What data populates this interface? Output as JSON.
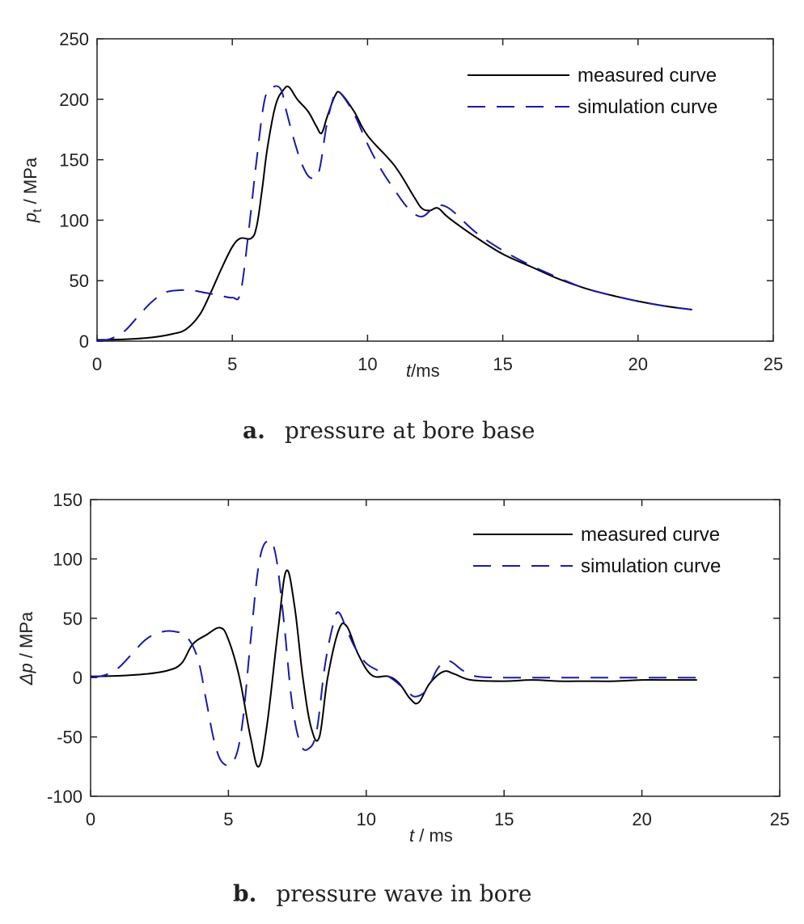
{
  "chart_data": [
    {
      "type": "line",
      "caption_letter": "a.",
      "caption_text": "pressure at bore base",
      "xlabel_var": "t",
      "xlabel_unit": "/ms",
      "ylabel_var": "p",
      "ylabel_sub": "t",
      "ylabel_unit": " / MPa",
      "xlim": [
        0,
        25
      ],
      "ylim": [
        0,
        250
      ],
      "xticks": [
        "0",
        "5",
        "10",
        "15",
        "20",
        "25"
      ],
      "yticks": [
        "0",
        "50",
        "100",
        "150",
        "200",
        "250"
      ],
      "legend_position": "top-right",
      "grid": false,
      "series": [
        {
          "name": "measured curve",
          "color": "#000000",
          "style": "solid",
          "points": [
            [
              0,
              1
            ],
            [
              1,
              1.5
            ],
            [
              2,
              3
            ],
            [
              2.8,
              6
            ],
            [
              3.3,
              10
            ],
            [
              3.8,
              22
            ],
            [
              4.2,
              40
            ],
            [
              4.6,
              60
            ],
            [
              5,
              78
            ],
            [
              5.3,
              85
            ],
            [
              5.7,
              85
            ],
            [
              5.9,
              95
            ],
            [
              6.1,
              125
            ],
            [
              6.3,
              160
            ],
            [
              6.6,
              195
            ],
            [
              6.9,
              208
            ],
            [
              7.1,
              210
            ],
            [
              7.4,
              200
            ],
            [
              7.8,
              190
            ],
            [
              8.1,
              178
            ],
            [
              8.3,
              172
            ],
            [
              8.5,
              185
            ],
            [
              8.8,
              203
            ],
            [
              9.0,
              205
            ],
            [
              9.5,
              190
            ],
            [
              10,
              170
            ],
            [
              11,
              145
            ],
            [
              11.7,
              120
            ],
            [
              12.0,
              110
            ],
            [
              12.3,
              108
            ],
            [
              12.6,
              110
            ],
            [
              13,
              102
            ],
            [
              14,
              86
            ],
            [
              15,
              72
            ],
            [
              16,
              62
            ],
            [
              17,
              52
            ],
            [
              18,
              44
            ],
            [
              19,
              38
            ],
            [
              20,
              33
            ],
            [
              21,
              29
            ],
            [
              22,
              26
            ]
          ]
        },
        {
          "name": "simulation curve",
          "color": "#1a1aa8",
          "style": "dashed",
          "points": [
            [
              0,
              0
            ],
            [
              0.5,
              2
            ],
            [
              1,
              8
            ],
            [
              1.5,
              20
            ],
            [
              2,
              32
            ],
            [
              2.5,
              40
            ],
            [
              3,
              42
            ],
            [
              3.5,
              42
            ],
            [
              4,
              40
            ],
            [
              4.5,
              38
            ],
            [
              5,
              36
            ],
            [
              5.3,
              40
            ],
            [
              5.6,
              90
            ],
            [
              5.9,
              150
            ],
            [
              6.2,
              200
            ],
            [
              6.5,
              210
            ],
            [
              6.8,
              208
            ],
            [
              7,
              190
            ],
            [
              7.3,
              165
            ],
            [
              7.6,
              145
            ],
            [
              7.9,
              135
            ],
            [
              8.2,
              140
            ],
            [
              8.5,
              180
            ],
            [
              8.8,
              205
            ],
            [
              9,
              205
            ],
            [
              9.5,
              188
            ],
            [
              10,
              163
            ],
            [
              10.5,
              142
            ],
            [
              11,
              125
            ],
            [
              11.5,
              110
            ],
            [
              12,
              103
            ],
            [
              12.5,
              111
            ],
            [
              13,
              110
            ],
            [
              14,
              90
            ],
            [
              15,
              75
            ],
            [
              16,
              63
            ],
            [
              17,
              53
            ],
            [
              18,
              44
            ],
            [
              19,
              38
            ],
            [
              20,
              33
            ],
            [
              21,
              29
            ],
            [
              22,
              26
            ]
          ]
        }
      ]
    },
    {
      "type": "line",
      "caption_letter": "b.",
      "caption_text": "pressure wave in bore",
      "xlabel_var": "t",
      "xlabel_unit": " / ms",
      "ylabel_var": "Δp",
      "ylabel_sub": "",
      "ylabel_unit": " / MPa",
      "xlim": [
        0,
        25
      ],
      "ylim": [
        -100,
        150
      ],
      "xticks": [
        "0",
        "5",
        "10",
        "15",
        "20",
        "25"
      ],
      "yticks": [
        "-100",
        "-50",
        "0",
        "50",
        "100",
        "150"
      ],
      "legend_position": "top-right",
      "grid": false,
      "series": [
        {
          "name": "measured curve",
          "color": "#000000",
          "style": "solid",
          "points": [
            [
              0,
              1
            ],
            [
              1,
              1.5
            ],
            [
              2,
              3
            ],
            [
              2.8,
              6
            ],
            [
              3.3,
              12
            ],
            [
              3.7,
              28
            ],
            [
              4.2,
              36
            ],
            [
              4.7,
              42
            ],
            [
              5.0,
              32
            ],
            [
              5.4,
              0
            ],
            [
              5.8,
              -50
            ],
            [
              6.1,
              -75
            ],
            [
              6.4,
              -40
            ],
            [
              6.8,
              40
            ],
            [
              7.1,
              90
            ],
            [
              7.4,
              60
            ],
            [
              7.7,
              0
            ],
            [
              8.0,
              -42
            ],
            [
              8.3,
              -50
            ],
            [
              8.6,
              0
            ],
            [
              9.0,
              40
            ],
            [
              9.3,
              43
            ],
            [
              9.7,
              20
            ],
            [
              10.2,
              2
            ],
            [
              10.8,
              1
            ],
            [
              11.2,
              -5
            ],
            [
              11.6,
              -18
            ],
            [
              11.9,
              -21
            ],
            [
              12.3,
              -5
            ],
            [
              12.8,
              5
            ],
            [
              13.2,
              3
            ],
            [
              13.8,
              -2
            ],
            [
              15,
              -3
            ],
            [
              16,
              -2
            ],
            [
              17,
              -3
            ],
            [
              18,
              -3
            ],
            [
              19,
              -3
            ],
            [
              20,
              -2
            ],
            [
              21,
              -2
            ],
            [
              22,
              -2
            ]
          ]
        },
        {
          "name": "simulation curve",
          "color": "#1a1aa8",
          "style": "dashed",
          "points": [
            [
              0,
              0
            ],
            [
              0.5,
              2
            ],
            [
              1,
              8
            ],
            [
              1.5,
              20
            ],
            [
              2,
              32
            ],
            [
              2.5,
              38
            ],
            [
              3,
              39
            ],
            [
              3.5,
              34
            ],
            [
              3.9,
              15
            ],
            [
              4.2,
              -20
            ],
            [
              4.5,
              -55
            ],
            [
              4.8,
              -72
            ],
            [
              5.2,
              -70
            ],
            [
              5.5,
              -40
            ],
            [
              5.8,
              30
            ],
            [
              6.1,
              95
            ],
            [
              6.4,
              115
            ],
            [
              6.7,
              105
            ],
            [
              7.0,
              50
            ],
            [
              7.3,
              -20
            ],
            [
              7.6,
              -55
            ],
            [
              7.9,
              -60
            ],
            [
              8.2,
              -45
            ],
            [
              8.5,
              10
            ],
            [
              8.8,
              45
            ],
            [
              9.0,
              55
            ],
            [
              9.3,
              40
            ],
            [
              9.6,
              25
            ],
            [
              10,
              12
            ],
            [
              10.5,
              5
            ],
            [
              11,
              -2
            ],
            [
              11.5,
              -12
            ],
            [
              11.8,
              -16
            ],
            [
              12.2,
              -10
            ],
            [
              12.6,
              8
            ],
            [
              13,
              14
            ],
            [
              13.5,
              6
            ],
            [
              14,
              1
            ],
            [
              15,
              0
            ],
            [
              16,
              0
            ],
            [
              17,
              0
            ],
            [
              18,
              0
            ],
            [
              19,
              0
            ],
            [
              20,
              0
            ],
            [
              21,
              0
            ],
            [
              22,
              0
            ]
          ]
        }
      ]
    }
  ]
}
